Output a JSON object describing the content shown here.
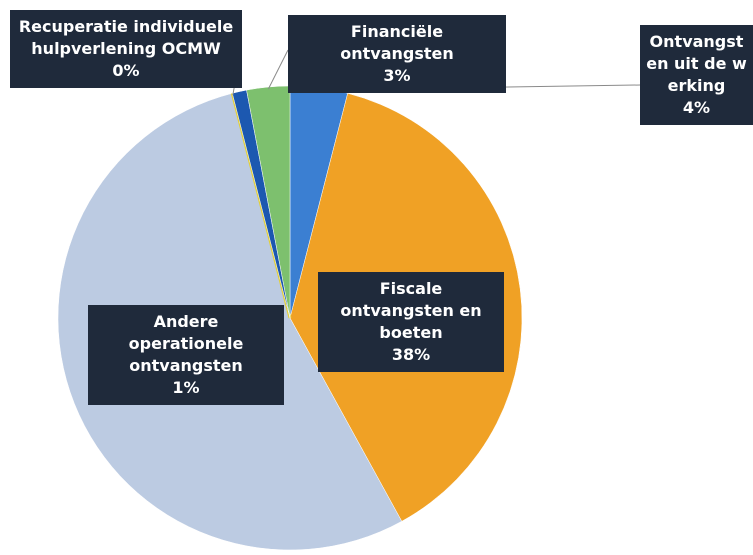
{
  "chart_data": {
    "type": "pie",
    "categories": [
      "Ontvangsten uit de werking",
      "Fiscale ontvangsten en boeten",
      null,
      "Recuperatie individuele hulpverlening OCMW",
      "Andere operationele ontvangsten",
      "Financiële ontvangsten"
    ],
    "values": [
      4,
      38,
      54,
      0,
      1,
      3
    ],
    "value_labels": [
      "4%",
      "38%",
      null,
      "0%",
      "1%",
      "3%"
    ],
    "colors": [
      "#3b7fd2",
      "#f0a125",
      "#bccbe2",
      "#e2cf3c",
      "#1c58b0",
      "#7dc06e"
    ]
  }
}
